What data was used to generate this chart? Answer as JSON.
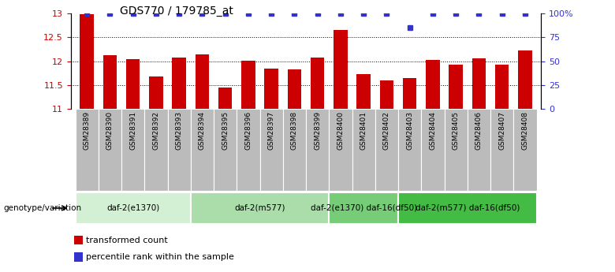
{
  "title": "GDS770 / 179785_at",
  "samples": [
    "GSM28389",
    "GSM28390",
    "GSM28391",
    "GSM28392",
    "GSM28393",
    "GSM28394",
    "GSM28395",
    "GSM28396",
    "GSM28397",
    "GSM28398",
    "GSM28399",
    "GSM28400",
    "GSM28401",
    "GSM28402",
    "GSM28403",
    "GSM28404",
    "GSM28405",
    "GSM28406",
    "GSM28407",
    "GSM28408"
  ],
  "bar_values": [
    12.98,
    12.12,
    12.05,
    11.68,
    12.07,
    12.14,
    11.44,
    12.01,
    11.84,
    11.82,
    12.07,
    12.65,
    11.73,
    11.6,
    11.65,
    12.02,
    11.93,
    12.06,
    11.93,
    12.22
  ],
  "percentile_values": [
    100,
    100,
    100,
    100,
    100,
    100,
    100,
    100,
    100,
    100,
    100,
    100,
    100,
    100,
    85,
    100,
    100,
    100,
    100,
    100
  ],
  "bar_color": "#cc0000",
  "percentile_color": "#3333cc",
  "ylim_left": [
    11,
    13
  ],
  "ylim_right": [
    0,
    100
  ],
  "yticks_left": [
    11,
    11.5,
    12,
    12.5,
    13
  ],
  "yticks_right": [
    0,
    25,
    50,
    75,
    100
  ],
  "ytick_labels_right": [
    "0",
    "25",
    "50",
    "75",
    "100%"
  ],
  "grid_values": [
    11.5,
    12.0,
    12.5
  ],
  "groups": [
    {
      "label": "daf-2(e1370)",
      "start": 0,
      "end": 5,
      "color": "#d4f0d4"
    },
    {
      "label": "daf-2(m577)",
      "start": 5,
      "end": 11,
      "color": "#aaddaa"
    },
    {
      "label": "daf-2(e1370) daf-16(df50)",
      "start": 11,
      "end": 14,
      "color": "#77cc77"
    },
    {
      "label": "daf-2(m577) daf-16(df50)",
      "start": 14,
      "end": 20,
      "color": "#44bb44"
    }
  ],
  "genotype_label": "genotype/variation",
  "legend_items": [
    {
      "label": "transformed count",
      "color": "#cc0000"
    },
    {
      "label": "percentile rank within the sample",
      "color": "#3333cc"
    }
  ],
  "background_color": "#ffffff",
  "bar_width": 0.6,
  "sample_cell_color": "#bbbbbb"
}
